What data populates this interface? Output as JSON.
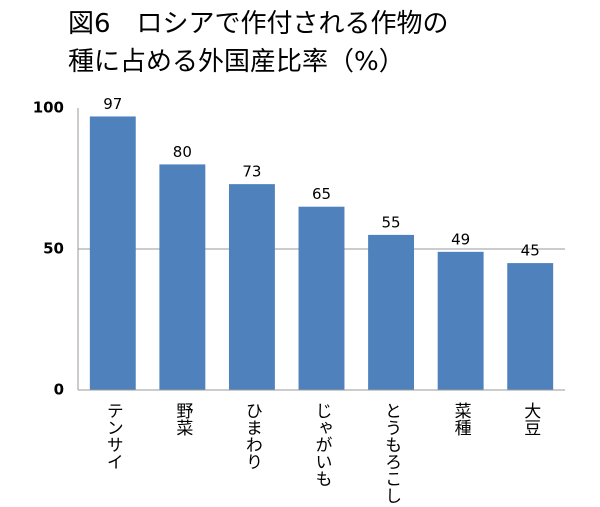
{
  "chart_data": {
    "type": "bar",
    "title": [
      "図6　ロシアで作付される作物の",
      "種に占める外国産比率（%）"
    ],
    "categories": [
      "テンサイ",
      "野菜",
      "ひまわり",
      "じゃがいも",
      "とうもろこし",
      "菜種",
      "大豆"
    ],
    "values": [
      97,
      80,
      73,
      65,
      55,
      49,
      45
    ],
    "color": "#4f81bd",
    "ylim": [
      0,
      100
    ],
    "yticks": [
      0,
      50,
      100
    ],
    "grid": true
  }
}
